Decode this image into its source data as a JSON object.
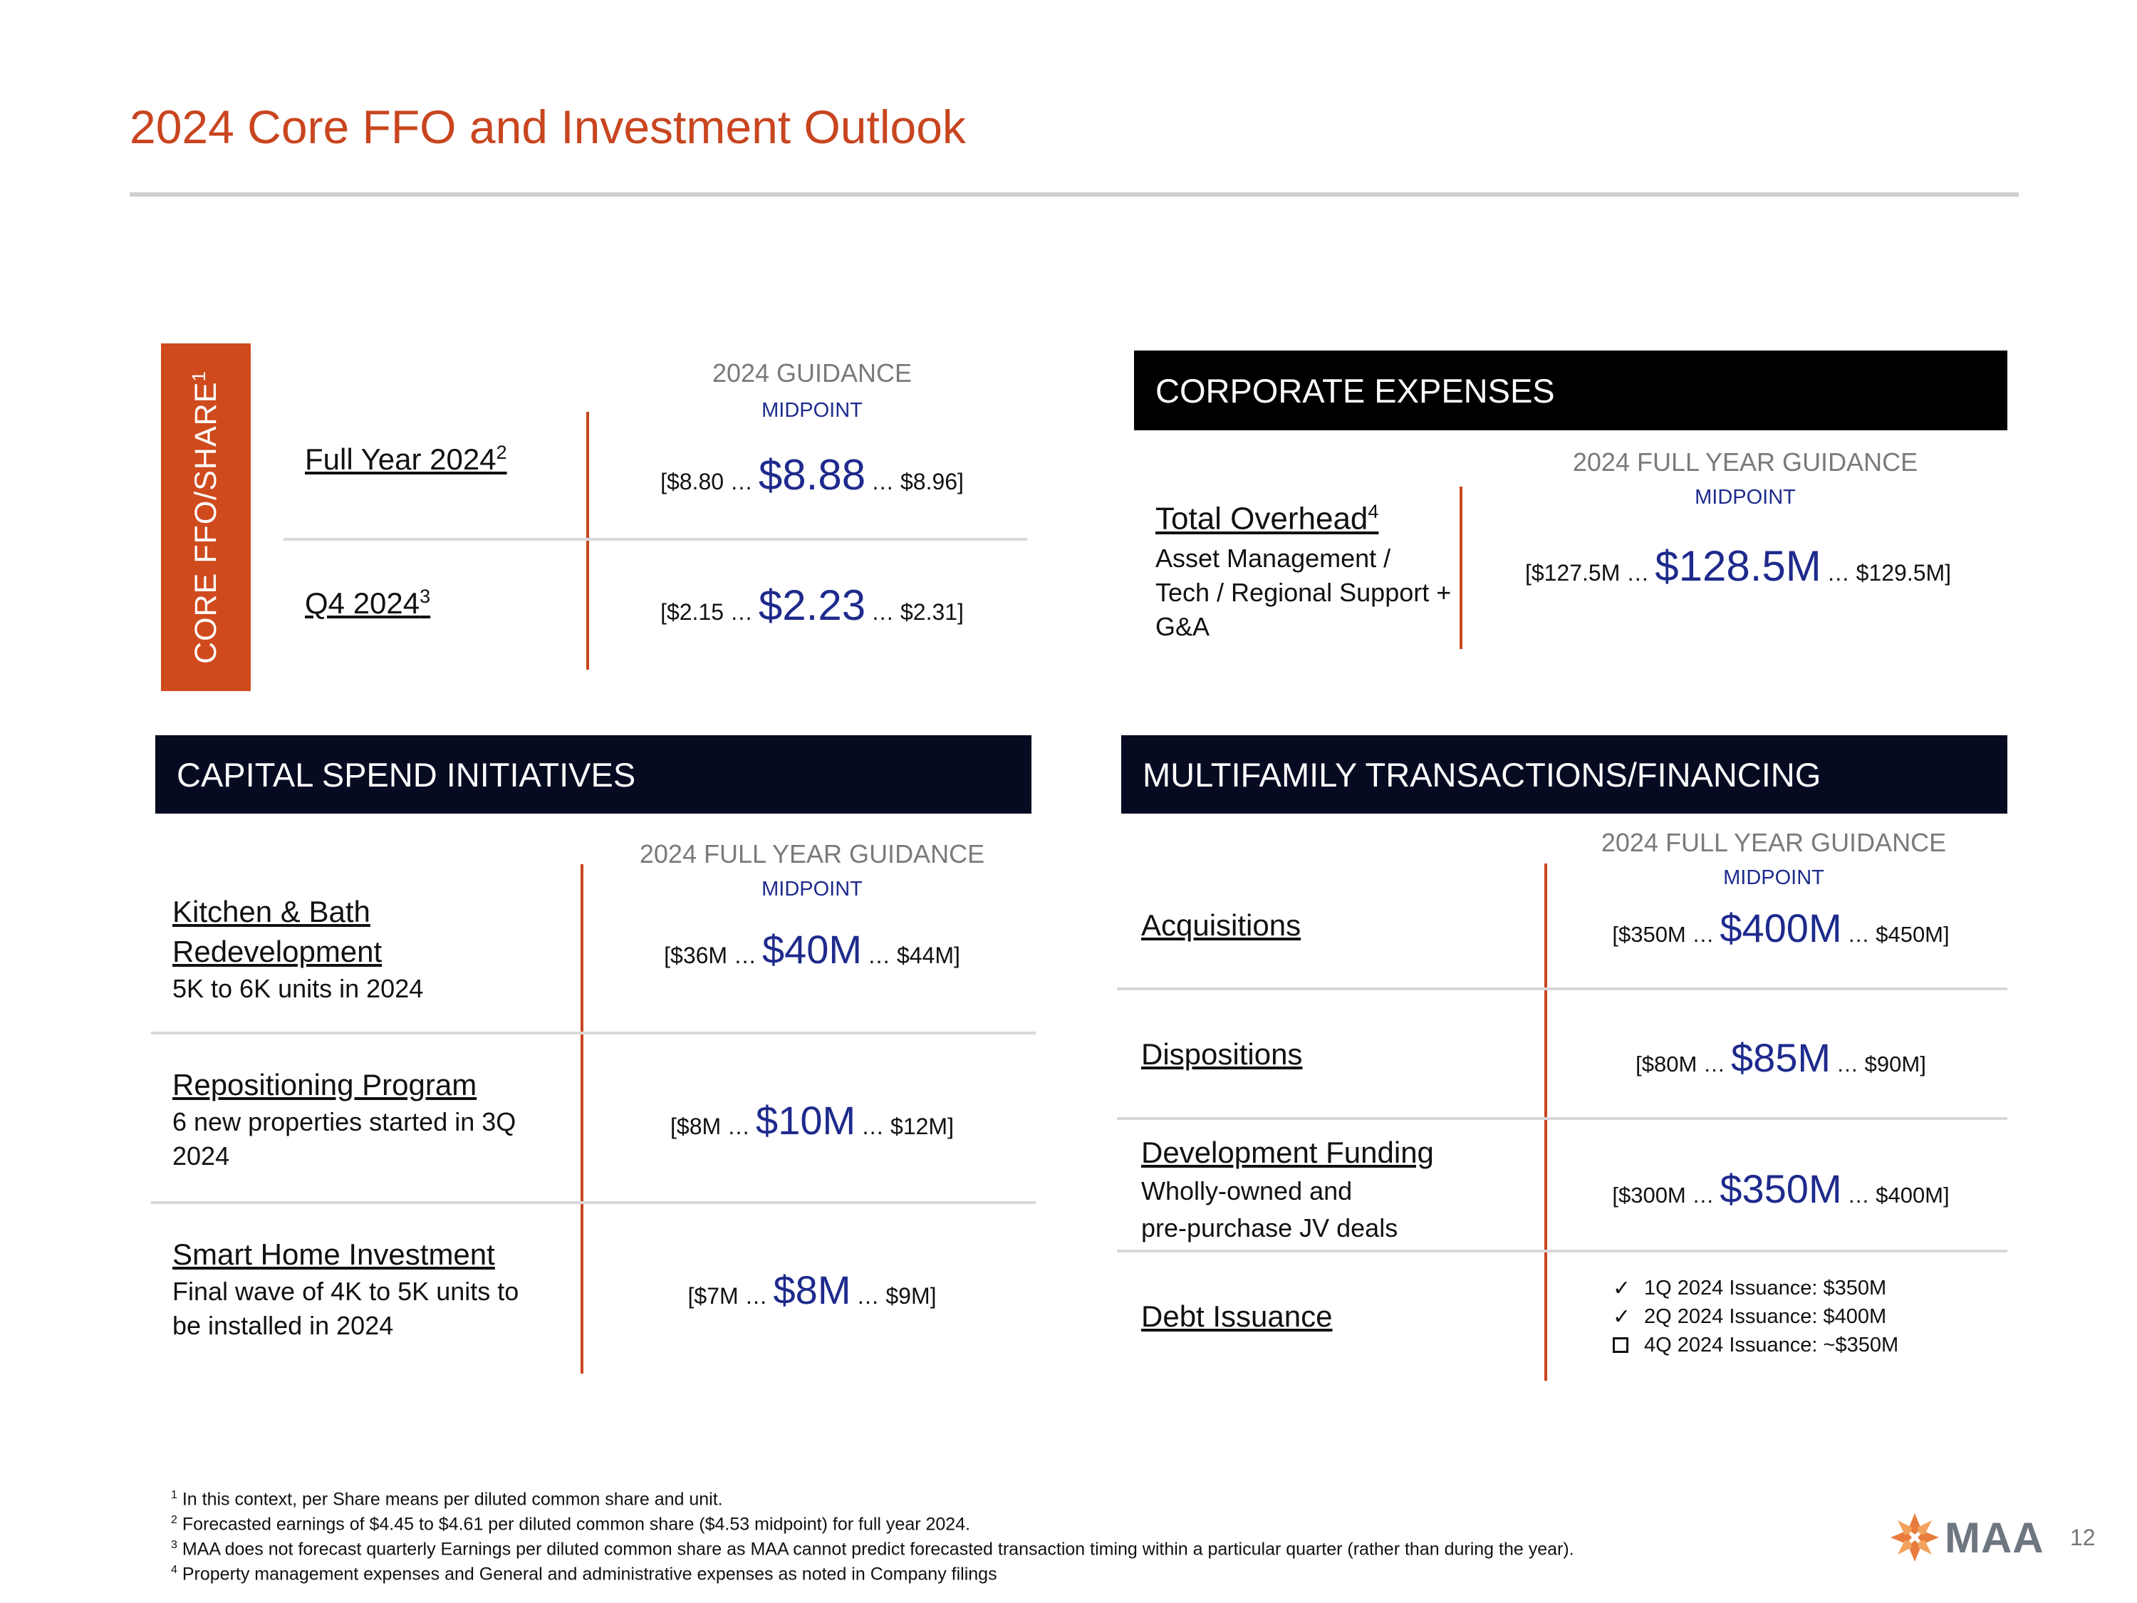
{
  "title": "2024 Core FFO and Investment Outlook",
  "core_ffo": {
    "tab_label": "CORE FFO/SHARE",
    "tab_sup": "1",
    "guidance_label": "2024 GUIDANCE",
    "midpoint_label": "MIDPOINT",
    "rows": [
      {
        "label": "Full Year 2024",
        "sup": "2",
        "low": "[$8.80 …",
        "mid": "$8.88",
        "high": "… $8.96]"
      },
      {
        "label": "Q4 2024",
        "sup": "3",
        "low": "[$2.15 …",
        "mid": "$2.23",
        "high": "… $2.31]"
      }
    ]
  },
  "corporate": {
    "header": "CORPORATE EXPENSES",
    "guidance_label": "2024 FULL YEAR GUIDANCE",
    "midpoint_label": "MIDPOINT",
    "label": "Total Overhead",
    "sup": "4",
    "sub_lines": [
      "Asset Management /",
      "Tech / Regional Support +",
      "G&A"
    ],
    "low": "[$127.5M …",
    "mid": "$128.5M",
    "high": "… $129.5M]"
  },
  "capital": {
    "header": "CAPITAL SPEND INITIATIVES",
    "guidance_label": "2024 FULL YEAR GUIDANCE",
    "midpoint_label": "MIDPOINT",
    "rows": [
      {
        "label_lines": [
          "Kitchen & Bath",
          "Redevelopment"
        ],
        "sub_lines": [
          "5K to 6K units in 2024"
        ],
        "low": "[$36M …",
        "mid": "$40M",
        "high": "… $44M]"
      },
      {
        "label_lines": [
          "Repositioning Program"
        ],
        "sub_lines": [
          "6 new properties started in  3Q",
          "2024"
        ],
        "low": "[$8M …",
        "mid": "$10M",
        "high": "… $12M]"
      },
      {
        "label_lines": [
          "Smart Home Investment"
        ],
        "sub_lines": [
          "Final wave of 4K to 5K units to",
          "be installed in 2024"
        ],
        "low": "[$7M …",
        "mid": "$8M",
        "high": "… $9M]"
      }
    ]
  },
  "multifamily": {
    "header": "MULTIFAMILY TRANSACTIONS/FINANCING",
    "guidance_label": "2024 FULL YEAR GUIDANCE",
    "midpoint_label": "MIDPOINT",
    "rows": [
      {
        "label": "Acquisitions",
        "low": "[$350M …",
        "mid": "$400M",
        "high": "… $450M]"
      },
      {
        "label": "Dispositions",
        "low": "[$80M …",
        "mid": "$85M",
        "high": "… $90M]"
      },
      {
        "label": "Development Funding",
        "sub_lines": [
          "Wholly-owned and",
          "pre-purchase JV deals"
        ],
        "low": "[$300M …",
        "mid": "$350M",
        "high": "… $400M]"
      }
    ],
    "debt": {
      "label": "Debt Issuance",
      "items": [
        {
          "mark": "✓",
          "text": "1Q 2024 Issuance: $350M"
        },
        {
          "mark": "✓",
          "text": "2Q 2024 Issuance: $400M"
        },
        {
          "mark": "box",
          "text": "4Q 2024 Issuance: ~$350M"
        }
      ]
    }
  },
  "footnotes": [
    {
      "n": "1",
      "text": " In this context, per Share means per diluted common share and unit."
    },
    {
      "n": "2",
      "text": " Forecasted earnings of $4.45 to $4.61 per diluted common share ($4.53 midpoint) for full year 2024."
    },
    {
      "n": "3",
      "text": " MAA does not forecast quarterly Earnings per diluted common share as MAA cannot predict forecasted transaction timing within a particular quarter (rather than during the year)."
    },
    {
      "n": "4",
      "text": " Property management expenses and General and administrative expenses as noted in Company filings"
    }
  ],
  "logo_text": "MAA",
  "page_number": "12",
  "colors": {
    "accent": "#c8451f",
    "navy": "#070b22",
    "midpoint": "#1e2a8c"
  }
}
